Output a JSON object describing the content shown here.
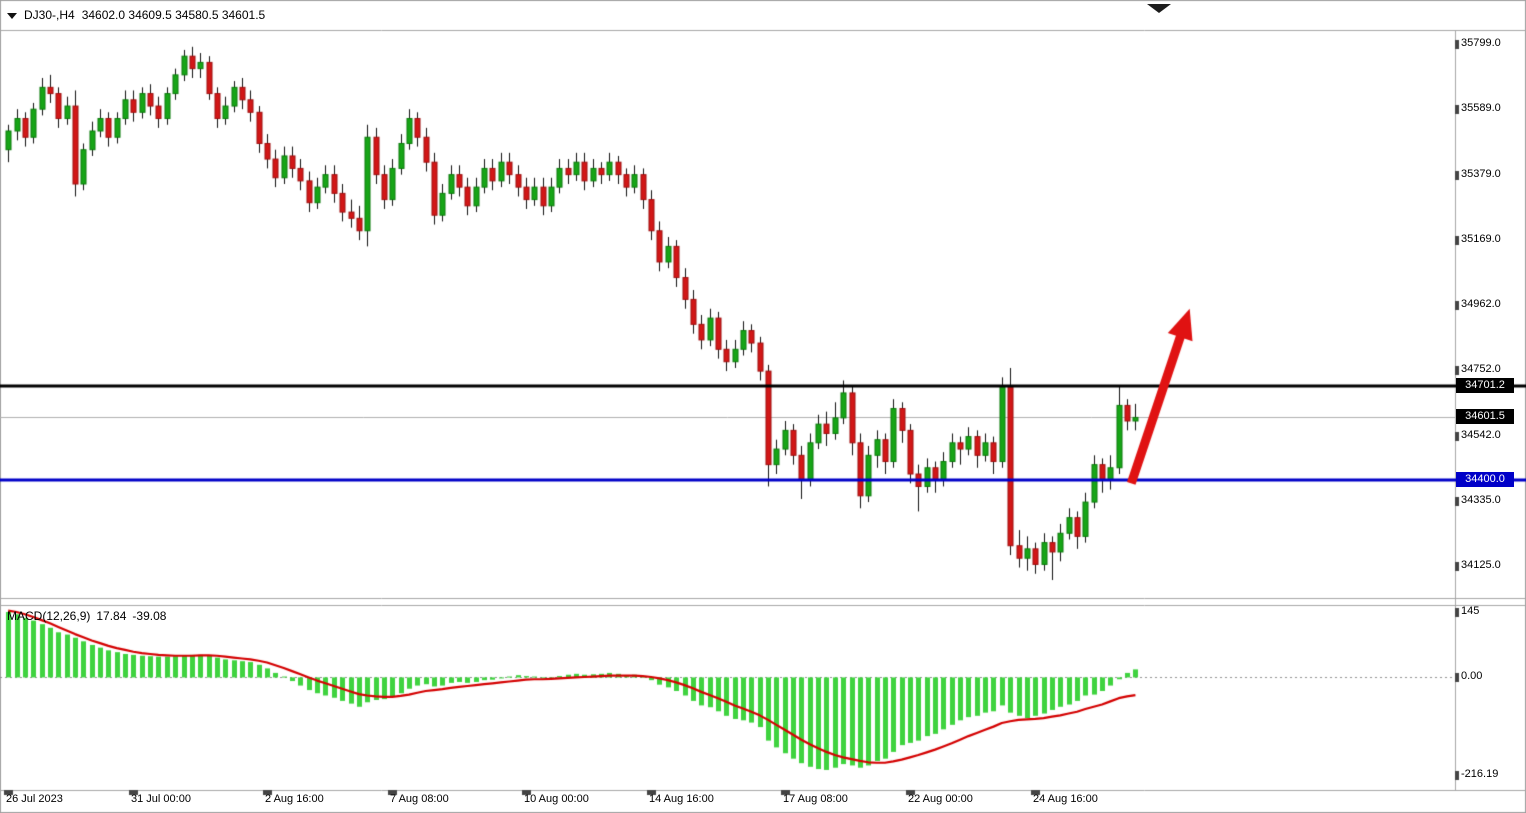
{
  "header": {
    "symbol": "DJ30-,H4",
    "ohlc": "34602.0 34609.5 34580.5 34601.5"
  },
  "macd_label": {
    "name": "MACD(12,26,9)",
    "main": "17.84",
    "signal": "-39.08"
  },
  "price_axis": {
    "ticks": [
      35799.0,
      35589.0,
      35379.0,
      35169.0,
      34962.0,
      34752.0,
      34542.0,
      34335.0,
      34125.0
    ]
  },
  "macd_axis": {
    "ticks": [
      {
        "text": "145",
        "value": 145
      },
      {
        "text": "0.00",
        "value": 0
      },
      {
        "text": "-216.19",
        "value": -216.19
      }
    ]
  },
  "time_axis": {
    "labels": [
      {
        "text": "26 Jul 2023",
        "index": 0
      },
      {
        "text": "31 Jul 00:00",
        "index": 15
      },
      {
        "text": "2 Aug 16:00",
        "index": 31
      },
      {
        "text": "7 Aug 08:00",
        "index": 46
      },
      {
        "text": "10 Aug 00:00",
        "index": 62
      },
      {
        "text": "14 Aug 16:00",
        "index": 77
      },
      {
        "text": "17 Aug 08:00",
        "index": 93
      },
      {
        "text": "22 Aug 00:00",
        "index": 108
      },
      {
        "text": "24 Aug 16:00",
        "index": 123
      }
    ]
  },
  "lines": {
    "resistance": {
      "label": "34701.2",
      "price": 34701.2,
      "color": "#000000"
    },
    "current": {
      "label": "34601.5",
      "price": 34601.5,
      "color": "#000000"
    },
    "support": {
      "label": "34400.0",
      "price": 34400.0,
      "color": "#0000C8"
    }
  },
  "colors": {
    "bull_fill": "#17a517",
    "bull_stroke": "#0b7a0b",
    "bear_fill": "#d21717",
    "bear_stroke": "#9e0f0f",
    "wick": "#111111",
    "hist": "#3fd33f",
    "signal_line": "#d40000",
    "arrow": "#e01212",
    "grid": "#a6a6a6",
    "current_line": "#b0b0b0",
    "frame": "#9f9f9f",
    "zero_line": "#909090"
  },
  "chart_data": {
    "type": "candlestick",
    "symbol": "DJ30-",
    "timeframe": "H4",
    "title": "DJ30-,H4 34602.0 34609.5 34580.5 34601.5",
    "price_range": [
      34125.0,
      35799.0
    ],
    "grid": false,
    "legend_position": "top-left",
    "candles": [
      [
        35460,
        35540,
        35420,
        35520
      ],
      [
        35520,
        35590,
        35490,
        35560
      ],
      [
        35560,
        35580,
        35470,
        35500
      ],
      [
        35500,
        35610,
        35480,
        35590
      ],
      [
        35590,
        35690,
        35570,
        35660
      ],
      [
        35660,
        35700,
        35610,
        35640
      ],
      [
        35640,
        35660,
        35530,
        35560
      ],
      [
        35560,
        35630,
        35540,
        35600
      ],
      [
        35600,
        35650,
        35310,
        35350
      ],
      [
        35350,
        35480,
        35330,
        35460
      ],
      [
        35460,
        35550,
        35440,
        35520
      ],
      [
        35520,
        35590,
        35500,
        35560
      ],
      [
        35560,
        35580,
        35470,
        35500
      ],
      [
        35500,
        35580,
        35480,
        35560
      ],
      [
        35560,
        35650,
        35540,
        35620
      ],
      [
        35620,
        35650,
        35550,
        35580
      ],
      [
        35580,
        35660,
        35560,
        35640
      ],
      [
        35640,
        35670,
        35570,
        35600
      ],
      [
        35600,
        35630,
        35530,
        35560
      ],
      [
        35560,
        35660,
        35540,
        35640
      ],
      [
        35640,
        35720,
        35620,
        35700
      ],
      [
        35700,
        35780,
        35680,
        35760
      ],
      [
        35760,
        35790,
        35690,
        35720
      ],
      [
        35720,
        35770,
        35690,
        35740
      ],
      [
        35740,
        35760,
        35620,
        35640
      ],
      [
        35640,
        35660,
        35530,
        35560
      ],
      [
        35560,
        35630,
        35540,
        35600
      ],
      [
        35600,
        35680,
        35580,
        35660
      ],
      [
        35660,
        35690,
        35590,
        35620
      ],
      [
        35620,
        35650,
        35550,
        35580
      ],
      [
        35580,
        35600,
        35450,
        35480
      ],
      [
        35480,
        35510,
        35400,
        35430
      ],
      [
        35430,
        35460,
        35340,
        35370
      ],
      [
        35370,
        35470,
        35350,
        35440
      ],
      [
        35440,
        35470,
        35370,
        35400
      ],
      [
        35400,
        35430,
        35330,
        35360
      ],
      [
        35360,
        35390,
        35260,
        35290
      ],
      [
        35290,
        35370,
        35270,
        35340
      ],
      [
        35340,
        35410,
        35320,
        35380
      ],
      [
        35380,
        35410,
        35290,
        35320
      ],
      [
        35320,
        35350,
        35230,
        35260
      ],
      [
        35260,
        35300,
        35210,
        35240
      ],
      [
        35240,
        35280,
        35170,
        35200
      ],
      [
        35200,
        35540,
        35150,
        35500
      ],
      [
        35500,
        35530,
        35350,
        35380
      ],
      [
        35380,
        35410,
        35270,
        35300
      ],
      [
        35300,
        35430,
        35280,
        35400
      ],
      [
        35400,
        35510,
        35380,
        35480
      ],
      [
        35480,
        35590,
        35460,
        35560
      ],
      [
        35560,
        35580,
        35470,
        35500
      ],
      [
        35500,
        35530,
        35390,
        35420
      ],
      [
        35420,
        35450,
        35220,
        35250
      ],
      [
        35250,
        35350,
        35230,
        35320
      ],
      [
        35320,
        35410,
        35300,
        35380
      ],
      [
        35380,
        35410,
        35310,
        35340
      ],
      [
        35340,
        35370,
        35250,
        35280
      ],
      [
        35280,
        35370,
        35260,
        35340
      ],
      [
        35340,
        35430,
        35320,
        35400
      ],
      [
        35400,
        35430,
        35330,
        35360
      ],
      [
        35360,
        35450,
        35340,
        35420
      ],
      [
        35420,
        35450,
        35350,
        35380
      ],
      [
        35380,
        35410,
        35310,
        35340
      ],
      [
        35340,
        35370,
        35270,
        35300
      ],
      [
        35300,
        35370,
        35280,
        35340
      ],
      [
        35340,
        35370,
        35250,
        35280
      ],
      [
        35280,
        35370,
        35260,
        35340
      ],
      [
        35340,
        35430,
        35320,
        35400
      ],
      [
        35400,
        35430,
        35350,
        35380
      ],
      [
        35380,
        35450,
        35360,
        35420
      ],
      [
        35420,
        35450,
        35330,
        35360
      ],
      [
        35360,
        35430,
        35340,
        35400
      ],
      [
        35400,
        35420,
        35350,
        35380
      ],
      [
        35380,
        35450,
        35360,
        35420
      ],
      [
        35420,
        35440,
        35350,
        35380
      ],
      [
        35380,
        35400,
        35310,
        35340
      ],
      [
        35340,
        35410,
        35320,
        35380
      ],
      [
        35380,
        35400,
        35270,
        35300
      ],
      [
        35300,
        35330,
        35170,
        35200
      ],
      [
        35200,
        35230,
        35070,
        35100
      ],
      [
        35100,
        35180,
        35080,
        35150
      ],
      [
        35150,
        35170,
        35020,
        35050
      ],
      [
        35050,
        35080,
        34950,
        34980
      ],
      [
        34980,
        35010,
        34870,
        34900
      ],
      [
        34900,
        34930,
        34820,
        34850
      ],
      [
        34850,
        34950,
        34830,
        34920
      ],
      [
        34920,
        34940,
        34790,
        34820
      ],
      [
        34820,
        34850,
        34750,
        34780
      ],
      [
        34780,
        34850,
        34760,
        34820
      ],
      [
        34820,
        34910,
        34800,
        34880
      ],
      [
        34880,
        34900,
        34810,
        34840
      ],
      [
        34840,
        34860,
        34720,
        34750
      ],
      [
        34750,
        34770,
        34380,
        34450
      ],
      [
        34450,
        34530,
        34420,
        34500
      ],
      [
        34500,
        34590,
        34480,
        34560
      ],
      [
        34560,
        34580,
        34450,
        34480
      ],
      [
        34480,
        34510,
        34340,
        34400
      ],
      [
        34400,
        34550,
        34380,
        34520
      ],
      [
        34520,
        34610,
        34500,
        34580
      ],
      [
        34580,
        34620,
        34510,
        34550
      ],
      [
        34550,
        34650,
        34530,
        34600
      ],
      [
        34600,
        34720,
        34580,
        34680
      ],
      [
        34680,
        34700,
        34480,
        34520
      ],
      [
        34520,
        34550,
        34310,
        34350
      ],
      [
        34350,
        34510,
        34330,
        34480
      ],
      [
        34480,
        34560,
        34440,
        34530
      ],
      [
        34530,
        34550,
        34420,
        34460
      ],
      [
        34460,
        34660,
        34440,
        34630
      ],
      [
        34630,
        34650,
        34520,
        34560
      ],
      [
        34560,
        34580,
        34390,
        34420
      ],
      [
        34420,
        34450,
        34300,
        34380
      ],
      [
        34380,
        34470,
        34360,
        34440
      ],
      [
        34440,
        34460,
        34360,
        34400
      ],
      [
        34400,
        34490,
        34380,
        34460
      ],
      [
        34460,
        34550,
        34440,
        34520
      ],
      [
        34520,
        34540,
        34450,
        34500
      ],
      [
        34500,
        34570,
        34480,
        34540
      ],
      [
        34540,
        34560,
        34440,
        34480
      ],
      [
        34480,
        34550,
        34460,
        34520
      ],
      [
        34520,
        34540,
        34420,
        34460
      ],
      [
        34460,
        34730,
        34440,
        34700
      ],
      [
        34700,
        34760,
        34160,
        34190
      ],
      [
        34190,
        34240,
        34120,
        34150
      ],
      [
        34150,
        34220,
        34110,
        34180
      ],
      [
        34180,
        34200,
        34100,
        34130
      ],
      [
        34130,
        34230,
        34110,
        34200
      ],
      [
        34200,
        34220,
        34080,
        34170
      ],
      [
        34170,
        34260,
        34140,
        34230
      ],
      [
        34230,
        34310,
        34210,
        34280
      ],
      [
        34280,
        34300,
        34180,
        34220
      ],
      [
        34220,
        34360,
        34200,
        34330
      ],
      [
        34330,
        34480,
        34310,
        34450
      ],
      [
        34450,
        34470,
        34360,
        34400
      ],
      [
        34400,
        34480,
        34370,
        34440
      ],
      [
        34440,
        34700,
        34420,
        34640
      ],
      [
        34640,
        34660,
        34560,
        34590
      ],
      [
        34590,
        34645,
        34560,
        34601.5
      ]
    ],
    "macd": {
      "params": "12,26,9",
      "range": [
        -216.19,
        145
      ],
      "histogram": [
        145,
        140,
        132,
        126,
        118,
        110,
        100,
        95,
        88,
        80,
        72,
        66,
        60,
        56,
        52,
        50,
        48,
        47,
        46,
        46,
        47,
        48,
        50,
        50,
        48,
        44,
        40,
        38,
        36,
        34,
        28,
        20,
        10,
        2,
        -8,
        -18,
        -28,
        -35,
        -40,
        -45,
        -52,
        -58,
        -65,
        -55,
        -50,
        -48,
        -42,
        -35,
        -25,
        -18,
        -15,
        -20,
        -18,
        -12,
        -10,
        -12,
        -10,
        -6,
        -5,
        -2,
        2,
        5,
        3,
        2,
        -2,
        -1,
        3,
        6,
        8,
        6,
        7,
        8,
        10,
        8,
        5,
        6,
        2,
        -6,
        -16,
        -22,
        -30,
        -40,
        -52,
        -62,
        -66,
        -75,
        -85,
        -92,
        -95,
        -100,
        -110,
        -140,
        -155,
        -168,
        -180,
        -190,
        -198,
        -203,
        -205,
        -200,
        -192,
        -195,
        -200,
        -195,
        -185,
        -180,
        -165,
        -150,
        -145,
        -140,
        -130,
        -125,
        -115,
        -105,
        -95,
        -88,
        -85,
        -78,
        -75,
        -62,
        -78,
        -85,
        -90,
        -85,
        -80,
        -72,
        -65,
        -60,
        -52,
        -40,
        -38,
        -30,
        -18,
        -4,
        10,
        17.84
      ],
      "signal_line": [
        148,
        145,
        140,
        134,
        127,
        120,
        112,
        104,
        96,
        89,
        82,
        76,
        70,
        65,
        61,
        57,
        54,
        52,
        50,
        49,
        48,
        48,
        48,
        49,
        49,
        48,
        46,
        44,
        42,
        40,
        37,
        33,
        27,
        21,
        14,
        7,
        0,
        -7,
        -13,
        -19,
        -25,
        -31,
        -37,
        -40,
        -42,
        -43,
        -43,
        -41,
        -38,
        -34,
        -30,
        -28,
        -26,
        -23,
        -21,
        -19,
        -17,
        -15,
        -13,
        -11,
        -9,
        -7,
        -5,
        -4,
        -4,
        -3,
        -2,
        -1,
        0,
        1,
        2,
        3,
        4,
        4,
        4,
        4,
        3,
        1,
        -2,
        -6,
        -11,
        -17,
        -24,
        -32,
        -39,
        -46,
        -54,
        -62,
        -69,
        -76,
        -84,
        -94,
        -105,
        -116,
        -127,
        -138,
        -148,
        -157,
        -165,
        -172,
        -177,
        -181,
        -185,
        -188,
        -189,
        -189,
        -186,
        -182,
        -177,
        -172,
        -166,
        -160,
        -153,
        -146,
        -138,
        -130,
        -123,
        -116,
        -109,
        -101,
        -97,
        -94,
        -93,
        -92,
        -90,
        -87,
        -84,
        -80,
        -76,
        -70,
        -65,
        -60,
        -53,
        -46,
        -42,
        -39.08
      ]
    },
    "annotations": [
      {
        "type": "arrow",
        "start": {
          "index": 134.5,
          "price": 34390
        },
        "end": {
          "index": 141.5,
          "price": 34950
        }
      }
    ]
  }
}
